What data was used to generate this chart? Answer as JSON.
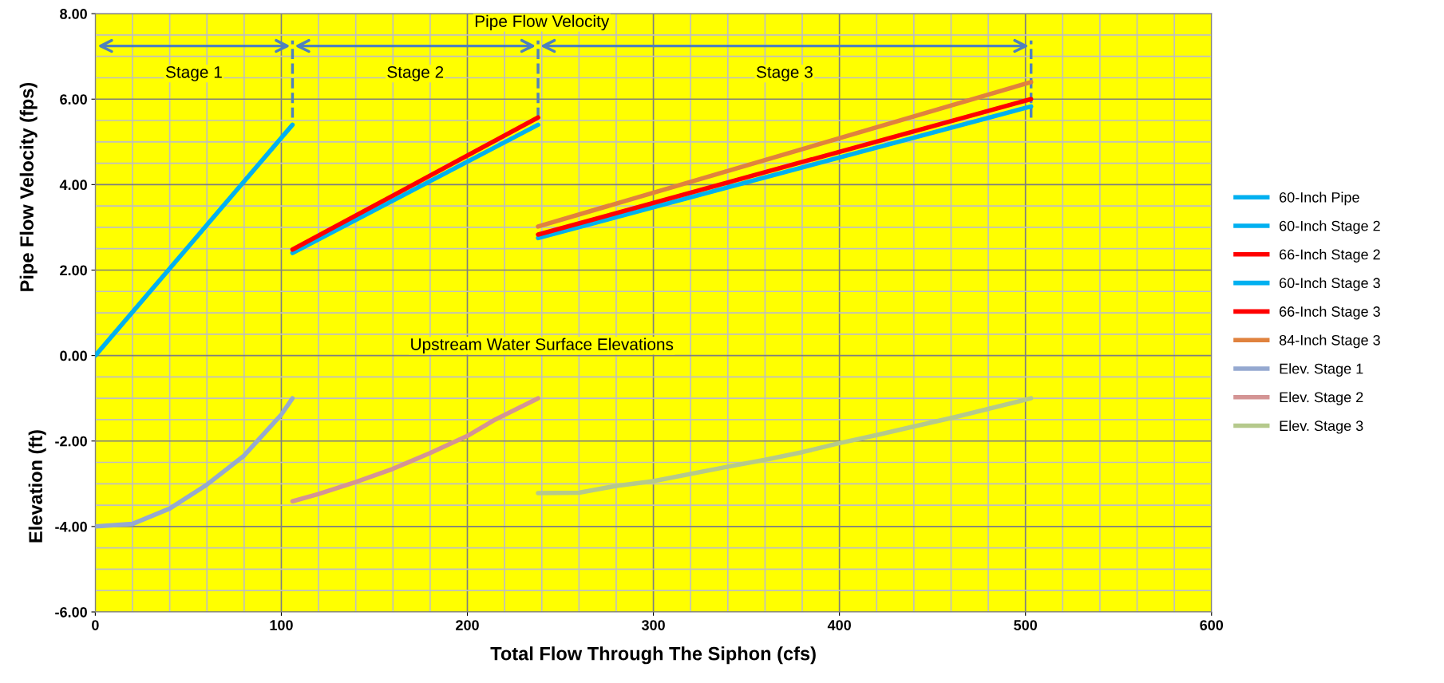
{
  "chart_data": {
    "type": "line",
    "xlabel": "Total Flow Through The Siphon (cfs)",
    "ylabel": "Pipe Flow Velocity (fps)",
    "xlim": [
      0,
      600
    ],
    "xticks": [
      0,
      100,
      200,
      300,
      400,
      500,
      600
    ],
    "ylim": [
      -6,
      8
    ],
    "yticks": [
      {
        "value": -6,
        "label": "-6.00"
      },
      {
        "value": -4,
        "label": "-4.00"
      },
      {
        "value": -2,
        "label": "-2.00"
      },
      {
        "value": 0,
        "label": "0.00"
      },
      {
        "value": 2,
        "label": "2.00"
      },
      {
        "value": 4,
        "label": "4.00"
      },
      {
        "value": 6,
        "label": "6.00"
      },
      {
        "value": 8,
        "label": "8.00"
      }
    ],
    "grid": true,
    "legend": "right",
    "marker": "none",
    "line_style": "solid",
    "series": [
      {
        "name": "60-Inch Pipe",
        "color": "#00b0f0",
        "x": [
          0,
          106
        ],
        "values": [
          0,
          5.4
        ]
      },
      {
        "name": "60-Inch Stage 2",
        "color": "#00b0f0",
        "x": [
          106,
          238
        ],
        "values": [
          2.4,
          5.4
        ]
      },
      {
        "name": "66-Inch Stage 2",
        "color": "#ff0000",
        "x": [
          106,
          238
        ],
        "values": [
          2.48,
          5.57
        ]
      },
      {
        "name": "60-Inch Stage 3",
        "color": "#00b0f0",
        "x": [
          238,
          503
        ],
        "values": [
          2.75,
          5.83
        ]
      },
      {
        "name": "66-Inch Stage 3",
        "color": "#ff0000",
        "x": [
          238,
          503
        ],
        "values": [
          2.83,
          6.0
        ]
      },
      {
        "name": "84-Inch Stage 3",
        "color": "#e0823e",
        "x": [
          238,
          503
        ],
        "values": [
          3.02,
          6.4
        ]
      },
      {
        "name": "Elev. Stage 1",
        "color": "#95a9d0",
        "x": [
          0,
          20,
          40,
          60,
          80,
          100,
          106
        ],
        "values": [
          -4.0,
          -3.94,
          -3.58,
          -3.02,
          -2.34,
          -1.38,
          -1.0
        ]
      },
      {
        "name": "Elev. Stage 2",
        "color": "#d49494",
        "x": [
          106,
          120,
          140,
          160,
          180,
          200,
          214,
          238
        ],
        "values": [
          -3.41,
          -3.24,
          -2.96,
          -2.65,
          -2.28,
          -1.88,
          -1.52,
          -1.0
        ]
      },
      {
        "name": "Elev. Stage 3",
        "color": "#b5c98c",
        "x": [
          238,
          260,
          280,
          300,
          340,
          360,
          380,
          400,
          420,
          440,
          463,
          503
        ],
        "values": [
          -3.22,
          -3.21,
          -3.05,
          -2.94,
          -2.6,
          -2.44,
          -2.26,
          -2.05,
          -1.86,
          -1.66,
          -1.43,
          -1.0
        ]
      }
    ],
    "ref_lines": [
      {
        "axis": "x",
        "value": 106,
        "color": "#4f81bd",
        "line_style": "dashed"
      },
      {
        "axis": "x",
        "value": 238,
        "color": "#4f81bd",
        "line_style": "dashed"
      },
      {
        "axis": "x",
        "value": 503,
        "color": "#4f81bd",
        "line_style": "dashed"
      }
    ],
    "annotations": [
      "Stage 1",
      "Stage 2",
      "Stage 3",
      "Pipe Flow Velocity",
      "Upstream Water Surface Elevations",
      "Elevation (ft)"
    ]
  }
}
